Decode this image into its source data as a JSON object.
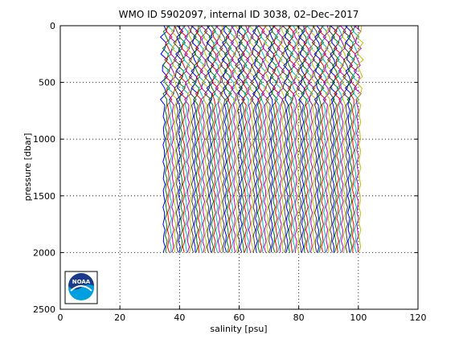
{
  "chart_data": {
    "type": "line",
    "title": "WMO ID 5902097, internal ID 3038, 02–Dec–2017",
    "xlabel": "salinity [psu]",
    "ylabel": "pressure [dbar]",
    "xlim": [
      0,
      120
    ],
    "ylim": [
      0,
      2500
    ],
    "y_reversed": true,
    "grid": true,
    "xticks": [
      "0",
      "20",
      "40",
      "60",
      "80",
      "100",
      "120"
    ],
    "yticks": [
      "0",
      "500",
      "1000",
      "1500",
      "2000",
      "2500"
    ],
    "profiles": {
      "count": 90,
      "salinity_start": 34.8,
      "salinity_step": 0.738,
      "pressure_top": 0,
      "pressure_bottom": 2000,
      "colors": [
        "#0000ff",
        "#008000",
        "#ff0000",
        "#00bfbf",
        "#bf00bf",
        "#bfbf00",
        "#404040"
      ]
    },
    "logo": {
      "text": "NOAA",
      "colors": [
        "#1a3a8a",
        "#00a0e0"
      ]
    }
  }
}
